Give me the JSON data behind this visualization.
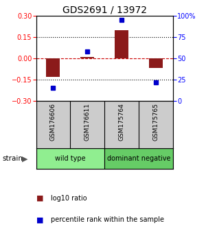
{
  "title": "GDS2691 / 13972",
  "samples": [
    "GSM176606",
    "GSM176611",
    "GSM175764",
    "GSM175765"
  ],
  "log10_ratio": [
    -0.13,
    0.01,
    0.2,
    -0.07
  ],
  "percentile_rank": [
    15,
    58,
    95,
    22
  ],
  "groups": [
    {
      "label": "wild type",
      "samples": [
        0,
        1
      ],
      "color": "#90EE90"
    },
    {
      "label": "dominant negative",
      "samples": [
        2,
        3
      ],
      "color": "#66CC66"
    }
  ],
  "ylim_left": [
    -0.3,
    0.3
  ],
  "ylim_right": [
    0,
    100
  ],
  "yticks_left": [
    -0.3,
    -0.15,
    0,
    0.15,
    0.3
  ],
  "yticks_right": [
    0,
    25,
    50,
    75,
    100
  ],
  "bar_color": "#8B1A1A",
  "dot_color": "#0000CC",
  "zero_line_color": "#CC0000",
  "grid_color": "black",
  "title_fontsize": 10,
  "tick_fontsize": 7,
  "sample_fontsize": 6.5,
  "group_fontsize": 7,
  "legend_fontsize": 7,
  "strain_label": "strain",
  "legend_items": [
    "log10 ratio",
    "percentile rank within the sample"
  ]
}
